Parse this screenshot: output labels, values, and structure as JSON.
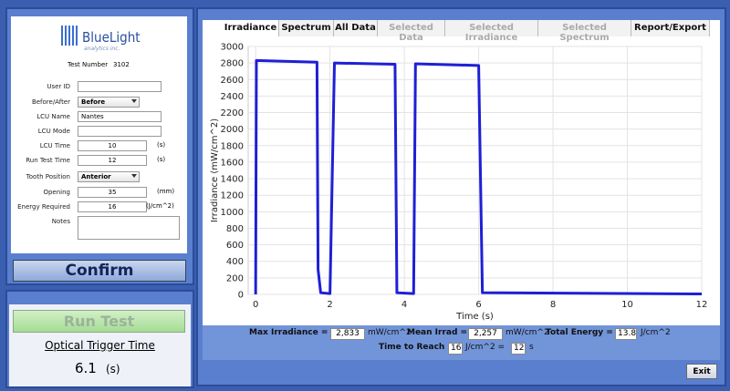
{
  "logo": {
    "name": "BlueLight",
    "tagline": "analytics inc."
  },
  "test_number": {
    "label": "Test Number",
    "value": "3102"
  },
  "fields": [
    {
      "label": "User ID"
    },
    {
      "label": "Before/After",
      "value": "Before",
      "kind": "select"
    },
    {
      "label": "LCU Name",
      "value": "Nantes"
    },
    {
      "label": "LCU Mode"
    },
    {
      "label": "LCU Time",
      "value": "10",
      "unit": "(s)"
    },
    {
      "label": "Run Test Time",
      "value": "12",
      "unit": "(s)"
    },
    {
      "label": "Tooth Position",
      "value": "Anterior",
      "kind": "select"
    },
    {
      "label": "Opening",
      "value": "35",
      "unit": "(mm)"
    },
    {
      "label": "Energy Required",
      "value": "16",
      "unit": "(J/cm^2)"
    },
    {
      "label": "Notes",
      "kind": "area"
    }
  ],
  "confirm": "Confirm",
  "run_test": "Run Test",
  "trigger": {
    "label": "Optical Trigger Time",
    "value": "6.1",
    "unit": "(s)"
  },
  "tabs": [
    "Irradiance",
    "Spectrum",
    "All Data",
    "Selected Data",
    "Selected Irradiance",
    "Selected Spectrum",
    "Report/Export"
  ],
  "chart_data": {
    "type": "line",
    "xlabel": "Time (s)",
    "ylabel": "Irradiance (mW/cm^2)",
    "x": [
      0,
      0.02,
      1.65,
      1.68,
      1.75,
      2.0,
      2.12,
      3.75,
      3.8,
      4.25,
      4.3,
      6.0,
      6.1,
      12
    ],
    "series": [
      {
        "color": "#1f1fd6",
        "values": [
          0,
          2830,
          2810,
          300,
          20,
          10,
          2800,
          2785,
          20,
          10,
          2790,
          2770,
          20,
          5
        ]
      }
    ],
    "xlim": [
      -0.2,
      12
    ],
    "ylim": [
      0,
      3000
    ],
    "xticks": [
      0,
      2,
      4,
      6,
      8,
      10,
      12
    ],
    "yticks": [
      0,
      200,
      400,
      600,
      800,
      1000,
      1200,
      1400,
      1600,
      1800,
      2000,
      2200,
      2400,
      2600,
      2800,
      3000
    ],
    "grid": true
  },
  "stats": {
    "max_label": "Max Irradiance =",
    "max_value": "2,833",
    "max_unit": "mW/cm^2",
    "mean_label": "Mean Irrad =",
    "mean_value": "2,257",
    "mean_unit": "mW/cm^2",
    "energy_label": "Total Energy =",
    "energy_value": "13.8",
    "energy_unit": "J/cm^2",
    "reach_label": "Time to Reach",
    "reach_energy": "16",
    "reach_unit": "J/cm^2 =",
    "reach_time": "12",
    "reach_time_unit": "s"
  },
  "exit": "Exit"
}
